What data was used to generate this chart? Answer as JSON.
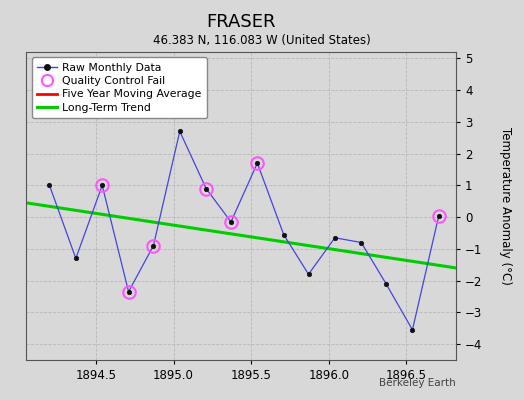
{
  "title": "FRASER",
  "subtitle": "46.383 N, 116.083 W (United States)",
  "ylabel": "Temperature Anomaly (°C)",
  "credit": "Berkeley Earth",
  "xlim": [
    1894.05,
    1896.82
  ],
  "ylim": [
    -4.5,
    5.2
  ],
  "yticks": [
    -4,
    -3,
    -2,
    -1,
    0,
    1,
    2,
    3,
    4,
    5
  ],
  "xticks": [
    1894.5,
    1895.0,
    1895.5,
    1896.0,
    1896.5
  ],
  "bg_color": "#d8d8d8",
  "plot_bg_color": "#d8d8d8",
  "raw_x": [
    1894.2,
    1894.37,
    1894.54,
    1894.71,
    1894.87,
    1895.04,
    1895.21,
    1895.37,
    1895.54,
    1895.71,
    1895.87,
    1896.04,
    1896.21,
    1896.37,
    1896.54,
    1896.71
  ],
  "raw_y": [
    1.0,
    -1.3,
    1.0,
    -2.35,
    -0.9,
    2.7,
    0.9,
    -0.15,
    1.7,
    -0.55,
    -1.8,
    -0.65,
    -0.8,
    -2.1,
    -3.55,
    0.05
  ],
  "qc_fail_x": [
    1894.54,
    1894.71,
    1894.87,
    1895.21,
    1895.37,
    1895.54,
    1896.71
  ],
  "qc_fail_y": [
    1.0,
    -2.35,
    -0.9,
    0.9,
    -0.15,
    1.7,
    0.05
  ],
  "trend_x": [
    1894.05,
    1896.82
  ],
  "trend_y": [
    0.45,
    -1.6
  ],
  "raw_color": "#4444dd",
  "raw_marker_color": "#111111",
  "qc_color": "#ff55ff",
  "trend_color": "#00cc00",
  "mavg_color": "#ff0000",
  "grid_color": "#b8b8b8"
}
